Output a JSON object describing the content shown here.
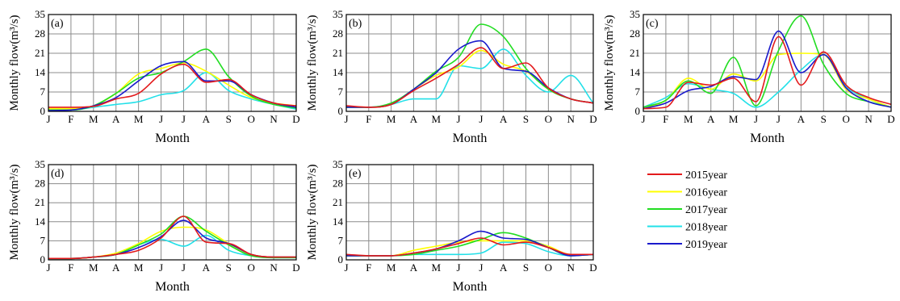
{
  "chart_data": [
    {
      "type": "line",
      "title": "(a)",
      "xlabel": "Month",
      "ylabel": "Monthly flow(m³/s)",
      "categories": [
        "J",
        "F",
        "M",
        "A",
        "M",
        "J",
        "J",
        "A",
        "S",
        "O",
        "N",
        "D"
      ],
      "yticks": [
        "0",
        "7",
        "14",
        "21",
        "28",
        "35"
      ],
      "ylim": [
        0,
        35
      ],
      "grid": true,
      "series": [
        {
          "name": "2015year",
          "values": [
            1.5,
            1.5,
            1.8,
            4.5,
            6.5,
            13.5,
            17,
            10.5,
            11.5,
            6,
            3,
            2
          ]
        },
        {
          "name": "2016year",
          "values": [
            1,
            1,
            2,
            6.5,
            13.5,
            15.5,
            17.5,
            14.5,
            9.5,
            5,
            3,
            2
          ]
        },
        {
          "name": "2017year",
          "values": [
            0.5,
            0.5,
            2,
            6.5,
            12,
            14,
            18,
            22.5,
            12.5,
            5.5,
            2.5,
            1.2
          ]
        },
        {
          "name": "2018year",
          "values": [
            0.5,
            0.5,
            1.5,
            2.5,
            3.5,
            6,
            7.5,
            14,
            7.5,
            4.5,
            2.5,
            0.8
          ]
        },
        {
          "name": "2019year",
          "values": [
            0.3,
            0.5,
            2,
            5,
            11,
            16.5,
            18,
            11,
            11,
            6,
            3,
            1.5
          ]
        }
      ]
    },
    {
      "type": "line",
      "title": "(b)",
      "xlabel": "Month",
      "ylabel": "Monthly flow(m³/s)",
      "categories": [
        "J",
        "F",
        "M",
        "A",
        "M",
        "J",
        "J",
        "A",
        "S",
        "O",
        "N",
        "D"
      ],
      "yticks": [
        "0",
        "7",
        "14",
        "21",
        "28",
        "35"
      ],
      "ylim": [
        0,
        35
      ],
      "grid": true,
      "series": [
        {
          "name": "2015year",
          "values": [
            2,
            1.5,
            2.5,
            7.5,
            12,
            17,
            23,
            15.5,
            17.5,
            8.5,
            4.5,
            3
          ]
        },
        {
          "name": "2016year",
          "values": [
            1.5,
            1.5,
            2.5,
            8,
            13,
            16,
            22,
            17,
            14.5,
            8,
            4.5,
            3
          ]
        },
        {
          "name": "2017year",
          "values": [
            1.5,
            1.5,
            3,
            8,
            14.5,
            19.5,
            31.5,
            27,
            15.5,
            8,
            4.5,
            3
          ]
        },
        {
          "name": "2018year",
          "values": [
            1.5,
            1.5,
            2.5,
            4.5,
            4.5,
            16.5,
            15.5,
            22.5,
            13,
            7,
            13,
            3
          ]
        },
        {
          "name": "2019year",
          "values": [
            1.5,
            1.5,
            2.5,
            8,
            14,
            22.5,
            25.5,
            15.5,
            14.5,
            8.5,
            4.5,
            3
          ]
        }
      ]
    },
    {
      "type": "line",
      "title": "(c)",
      "xlabel": "Month",
      "ylabel": "Monthly flow(m³/s)",
      "categories": [
        "J",
        "F",
        "M",
        "A",
        "M",
        "J",
        "J",
        "A",
        "S",
        "O",
        "N",
        "D"
      ],
      "yticks": [
        "0",
        "7",
        "14",
        "21",
        "28",
        "35"
      ],
      "ylim": [
        0,
        35
      ],
      "grid": true,
      "series": [
        {
          "name": "2015year",
          "values": [
            1,
            1.5,
            10.5,
            9.5,
            12,
            3.5,
            27,
            9.5,
            21.5,
            9.5,
            5,
            2.5
          ]
        },
        {
          "name": "2016year",
          "values": [
            1,
            4,
            12,
            8,
            13.5,
            11,
            20.5,
            21,
            20.5,
            8,
            4.5,
            1.5
          ]
        },
        {
          "name": "2017year",
          "values": [
            1.5,
            4,
            11,
            6.5,
            19.5,
            2,
            22,
            34.5,
            17,
            6.5,
            3.5,
            1.5
          ]
        },
        {
          "name": "2018year",
          "values": [
            1.5,
            5,
            10,
            8,
            6.5,
            1.5,
            7,
            15,
            20.5,
            9,
            4.5,
            1.5
          ]
        },
        {
          "name": "2019year",
          "values": [
            1,
            3,
            7.5,
            9,
            12.5,
            11.5,
            29,
            14,
            20.5,
            8.5,
            3.5,
            1.5
          ]
        }
      ]
    },
    {
      "type": "line",
      "title": "(d)",
      "xlabel": "Month",
      "ylabel": "Monthly flow(m³/s)",
      "categories": [
        "J",
        "F",
        "M",
        "A",
        "M",
        "J",
        "J",
        "A",
        "S",
        "O",
        "N",
        "D"
      ],
      "yticks": [
        "0",
        "7",
        "14",
        "21",
        "28",
        "35"
      ],
      "ylim": [
        0,
        35
      ],
      "grid": true,
      "series": [
        {
          "name": "2015year",
          "values": [
            0.5,
            0.5,
            1,
            2,
            3.5,
            8,
            16,
            6.5,
            6,
            2,
            1,
            1
          ]
        },
        {
          "name": "2016year",
          "values": [
            0.5,
            0.5,
            1,
            2.5,
            6,
            10.5,
            12,
            11,
            6,
            2,
            1,
            1
          ]
        },
        {
          "name": "2017year",
          "values": [
            0.5,
            0.5,
            1,
            2,
            5.5,
            9.5,
            16,
            10.5,
            5.5,
            1.5,
            0.8,
            0.8
          ]
        },
        {
          "name": "2018year",
          "values": [
            0.5,
            0.5,
            1,
            2,
            5.5,
            7.5,
            5,
            9,
            3.5,
            1.5,
            0.8,
            0.8
          ]
        },
        {
          "name": "2019year",
          "values": [
            0.5,
            0.5,
            1,
            2,
            4.5,
            8.5,
            14.5,
            8,
            6,
            2,
            1,
            1
          ]
        }
      ]
    },
    {
      "type": "line",
      "title": "(e)",
      "xlabel": "Month",
      "ylabel": "Monthly flow(m³/s)",
      "categories": [
        "J",
        "F",
        "M",
        "A",
        "M",
        "J",
        "J",
        "A",
        "S",
        "O",
        "N",
        "D"
      ],
      "yticks": [
        "0",
        "7",
        "14",
        "21",
        "28",
        "35"
      ],
      "ylim": [
        0,
        35
      ],
      "grid": true,
      "series": [
        {
          "name": "2015year",
          "values": [
            2,
            1.5,
            1.5,
            2.5,
            4,
            6,
            8,
            5.5,
            6.5,
            4.5,
            2,
            2
          ]
        },
        {
          "name": "2016year",
          "values": [
            1.5,
            1.5,
            1.5,
            3.5,
            5,
            6.5,
            7,
            7,
            7,
            5,
            2,
            2
          ]
        },
        {
          "name": "2017year",
          "values": [
            1.5,
            1.5,
            1.5,
            2,
            3.5,
            5,
            7.5,
            10,
            8,
            4.5,
            1.5,
            2
          ]
        },
        {
          "name": "2018year",
          "values": [
            1.5,
            1.5,
            1.5,
            2,
            2,
            2,
            2.5,
            6.5,
            6,
            3,
            1.5,
            2
          ]
        },
        {
          "name": "2019year",
          "values": [
            1.5,
            1.5,
            1.5,
            2.5,
            4,
            7,
            10.5,
            8,
            7.5,
            4.5,
            1.5,
            2
          ]
        }
      ]
    }
  ],
  "legend": {
    "placement": "right",
    "entries": [
      {
        "label": "2015year",
        "color": "#e31a1c"
      },
      {
        "label": "2016year",
        "color": "#ffff00"
      },
      {
        "label": "2017year",
        "color": "#22dd22"
      },
      {
        "label": "2018year",
        "color": "#22e0e8"
      },
      {
        "label": "2019year",
        "color": "#1a1acc"
      }
    ]
  },
  "colors": {
    "2015year": "#e31a1c",
    "2016year": "#ffff00",
    "2017year": "#22dd22",
    "2018year": "#22e0e8",
    "2019year": "#1a1acc",
    "grid": "#8c8c8c",
    "axis": "#000000"
  }
}
